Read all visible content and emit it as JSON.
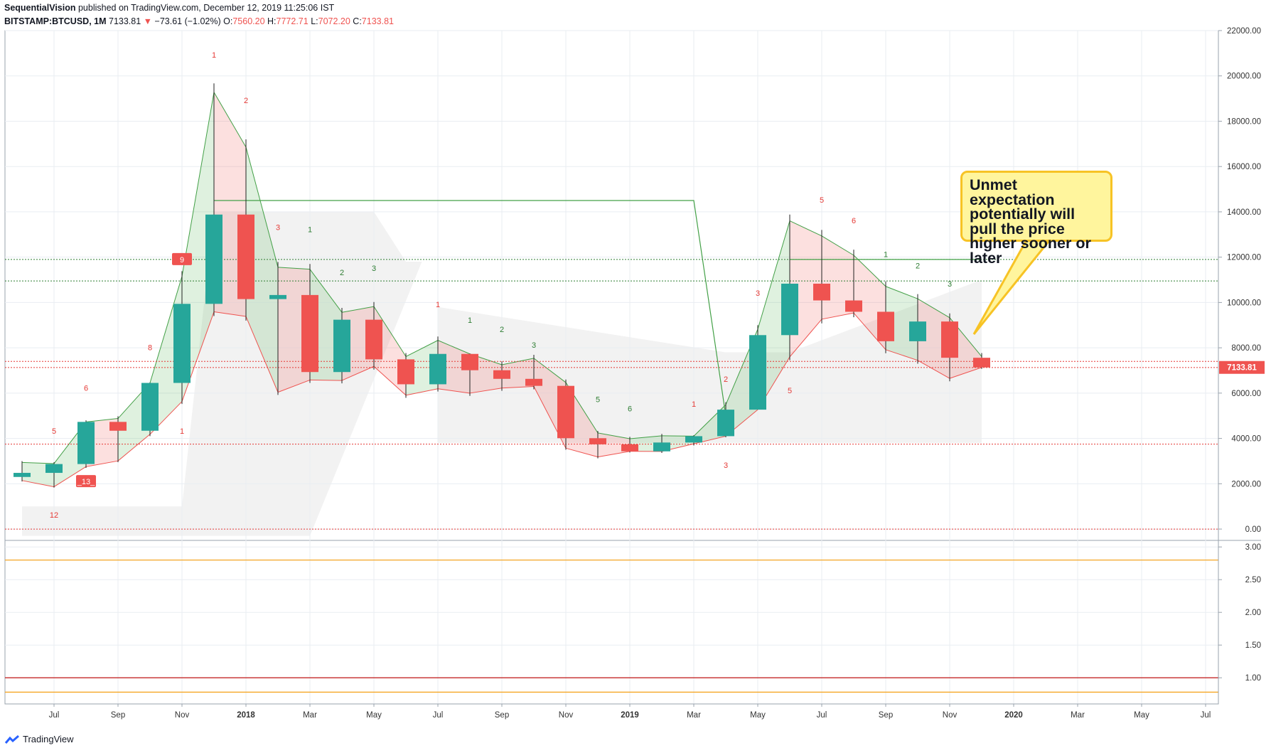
{
  "header": {
    "publisher": "SequentialVision",
    "published_text": "published on TradingView.com, December 12, 2019 11:25:06 IST",
    "symbol": "BITSTAMP:BTCUSD, 1M",
    "last": "7133.81",
    "arrow": "▼",
    "change": "−73.61 (−1.02%)",
    "o_label": "O:",
    "o_value": "7560.20",
    "h_label": "H:",
    "h_value": "7772.71",
    "l_label": "L:",
    "l_value": "7072.20",
    "c_label": "C:",
    "c_value": "7133.81"
  },
  "annotation": {
    "text": "Unmet expectation potentially will pull the price higher sooner or later"
  },
  "footer": {
    "brand": "TradingView"
  },
  "colors": {
    "up": "#26a69a",
    "down": "#ef5350",
    "grid": "#e9edf2",
    "axis": "#555555",
    "green_line": "#43a047",
    "red_line": "#ef5350",
    "orange": "#f5a623"
  },
  "chart_data": [
    {
      "type": "candlestick",
      "ylim": [
        -500,
        22000
      ],
      "y_ticks": [
        0,
        2000,
        4000,
        6000,
        8000,
        10000,
        12000,
        14000,
        16000,
        18000,
        20000,
        22000
      ],
      "y_tick_labels": [
        "0.00",
        "2000.00",
        "4000.00",
        "6000.00",
        "8000.00",
        "10000.00",
        "12000.00",
        "14000.00",
        "16000.00",
        "18000.00",
        "20000.00",
        "22000.00"
      ],
      "x_tick_labels": [
        {
          "i": 1,
          "label": "Jul"
        },
        {
          "i": 3,
          "label": "Sep"
        },
        {
          "i": 5,
          "label": "Nov"
        },
        {
          "i": 7,
          "label": "2018"
        },
        {
          "i": 9,
          "label": "Mar"
        },
        {
          "i": 11,
          "label": "May"
        },
        {
          "i": 13,
          "label": "Jul"
        },
        {
          "i": 15,
          "label": "Sep"
        },
        {
          "i": 17,
          "label": "Nov"
        },
        {
          "i": 19,
          "label": "2019"
        },
        {
          "i": 21,
          "label": "Mar"
        },
        {
          "i": 23,
          "label": "May"
        },
        {
          "i": 25,
          "label": "Jul"
        },
        {
          "i": 27,
          "label": "Sep"
        },
        {
          "i": 29,
          "label": "Nov"
        },
        {
          "i": 31,
          "label": "2020"
        },
        {
          "i": 33,
          "label": "Mar"
        },
        {
          "i": 35,
          "label": "May"
        },
        {
          "i": 37,
          "label": "Jul"
        }
      ],
      "candles": [
        {
          "date": "2017-06",
          "o": 2300,
          "h": 3000,
          "l": 2100,
          "c": 2480
        },
        {
          "date": "2017-07",
          "o": 2480,
          "h": 2950,
          "l": 1830,
          "c": 2870
        },
        {
          "date": "2017-08",
          "o": 2870,
          "h": 4800,
          "l": 2700,
          "c": 4730
        },
        {
          "date": "2017-09",
          "o": 4730,
          "h": 4980,
          "l": 2950,
          "c": 4340
        },
        {
          "date": "2017-10",
          "o": 4340,
          "h": 6470,
          "l": 4100,
          "c": 6450
        },
        {
          "date": "2017-11",
          "o": 6450,
          "h": 11380,
          "l": 5520,
          "c": 9940
        },
        {
          "date": "2017-12",
          "o": 9940,
          "h": 19670,
          "l": 9400,
          "c": 13880
        },
        {
          "date": "2018-01",
          "o": 13880,
          "h": 17200,
          "l": 9200,
          "c": 10150
        },
        {
          "date": "2018-02",
          "o": 10150,
          "h": 11790,
          "l": 5920,
          "c": 10330
        },
        {
          "date": "2018-03",
          "o": 10330,
          "h": 11700,
          "l": 6450,
          "c": 6930
        },
        {
          "date": "2018-04",
          "o": 6930,
          "h": 9760,
          "l": 6430,
          "c": 9240
        },
        {
          "date": "2018-05",
          "o": 9240,
          "h": 10020,
          "l": 7040,
          "c": 7490
        },
        {
          "date": "2018-06",
          "o": 7490,
          "h": 7770,
          "l": 5790,
          "c": 6390
        },
        {
          "date": "2018-07",
          "o": 6390,
          "h": 8500,
          "l": 6070,
          "c": 7730
        },
        {
          "date": "2018-08",
          "o": 7730,
          "h": 7750,
          "l": 5880,
          "c": 7010
        },
        {
          "date": "2018-09",
          "o": 7010,
          "h": 7400,
          "l": 6100,
          "c": 6630
        },
        {
          "date": "2018-10",
          "o": 6630,
          "h": 7690,
          "l": 6170,
          "c": 6320
        },
        {
          "date": "2018-11",
          "o": 6320,
          "h": 6600,
          "l": 3500,
          "c": 4010
        },
        {
          "date": "2018-12",
          "o": 4010,
          "h": 4330,
          "l": 3120,
          "c": 3740
        },
        {
          "date": "2019-01",
          "o": 3740,
          "h": 4070,
          "l": 3380,
          "c": 3430
        },
        {
          "date": "2019-02",
          "o": 3430,
          "h": 4200,
          "l": 3360,
          "c": 3820
        },
        {
          "date": "2019-03",
          "o": 3820,
          "h": 4140,
          "l": 3690,
          "c": 4100
        },
        {
          "date": "2019-04",
          "o": 4100,
          "h": 5600,
          "l": 4050,
          "c": 5270
        },
        {
          "date": "2019-05",
          "o": 5270,
          "h": 9000,
          "l": 5350,
          "c": 8560
        },
        {
          "date": "2019-06",
          "o": 8560,
          "h": 13880,
          "l": 7450,
          "c": 10830
        },
        {
          "date": "2019-07",
          "o": 10830,
          "h": 13200,
          "l": 9080,
          "c": 10090
        },
        {
          "date": "2019-08",
          "o": 10090,
          "h": 12330,
          "l": 9350,
          "c": 9590
        },
        {
          "date": "2019-09",
          "o": 9590,
          "h": 10930,
          "l": 7760,
          "c": 8290
        },
        {
          "date": "2019-10",
          "o": 8290,
          "h": 10370,
          "l": 7300,
          "c": 9160
        },
        {
          "date": "2019-11",
          "o": 9160,
          "h": 9520,
          "l": 6520,
          "c": 7560
        },
        {
          "date": "2019-12",
          "o": 7560,
          "h": 7770,
          "l": 7070,
          "c": 7133.81
        }
      ],
      "last_price_label": "7133.81",
      "setup_labels": [
        {
          "i": 1,
          "text": "5",
          "color": "red",
          "y": 4200
        },
        {
          "i": 2,
          "text": "6",
          "color": "red",
          "y": 6100
        },
        {
          "i": 4,
          "text": "8",
          "color": "red",
          "y": 7900
        },
        {
          "i": 5,
          "text": "1",
          "color": "red",
          "y": 4200
        },
        {
          "i": 6,
          "text": "1",
          "color": "red",
          "y": 20800
        },
        {
          "i": 7,
          "text": "2",
          "color": "red",
          "y": 18800
        },
        {
          "i": 8,
          "text": "3",
          "color": "red",
          "y": 13200
        },
        {
          "i": 9,
          "text": "1",
          "color": "green",
          "y": 13100
        },
        {
          "i": 10,
          "text": "2",
          "color": "green",
          "y": 11200
        },
        {
          "i": 11,
          "text": "3",
          "color": "green",
          "y": 11400
        },
        {
          "i": 13,
          "text": "1",
          "color": "red",
          "y": 9800
        },
        {
          "i": 14,
          "text": "1",
          "color": "green",
          "y": 9100
        },
        {
          "i": 15,
          "text": "2",
          "color": "green",
          "y": 8700
        },
        {
          "i": 16,
          "text": "3",
          "color": "green",
          "y": 8000
        },
        {
          "i": 18,
          "text": "5",
          "color": "green",
          "y": 5600
        },
        {
          "i": 19,
          "text": "6",
          "color": "green",
          "y": 5200
        },
        {
          "i": 21,
          "text": "1",
          "color": "red",
          "y": 5400
        },
        {
          "i": 22,
          "text": "2",
          "color": "red",
          "y": 6500
        },
        {
          "i": 22,
          "text": "3",
          "color": "red",
          "y": 2700
        },
        {
          "i": 23,
          "text": "3",
          "color": "red",
          "y": 10300
        },
        {
          "i": 24,
          "text": "5",
          "color": "red",
          "y": 6000
        },
        {
          "i": 25,
          "text": "5",
          "color": "red",
          "y": 14400
        },
        {
          "i": 26,
          "text": "6",
          "color": "red",
          "y": 13500
        },
        {
          "i": 27,
          "text": "1",
          "color": "green",
          "y": 12000
        },
        {
          "i": 28,
          "text": "2",
          "color": "green",
          "y": 11500
        },
        {
          "i": 29,
          "text": "3",
          "color": "green",
          "y": 10700
        },
        {
          "i": 1,
          "text": "12",
          "color": "red",
          "y": 500
        }
      ],
      "badges": [
        {
          "i": 5,
          "text": "9",
          "y": 11900,
          "color": "#ef5350"
        },
        {
          "i": 2,
          "text": "_13_",
          "y": 2100,
          "color": "#ef5350"
        }
      ],
      "h_lines": [
        {
          "y": 11900,
          "style": "dotted",
          "color": "green"
        },
        {
          "y": 10950,
          "style": "dotted",
          "color": "green"
        },
        {
          "y": 7400,
          "style": "dotted",
          "color": "red"
        },
        {
          "y": 7130,
          "style": "dotted",
          "color": "red"
        },
        {
          "y": 3750,
          "style": "dotted",
          "color": "red"
        },
        {
          "y": 0,
          "style": "dotted",
          "color": "red"
        }
      ],
      "tdst_line": [
        {
          "i": 6,
          "y": 14500
        },
        {
          "i": 21,
          "y": 14500
        },
        {
          "i": 22,
          "y": 5000
        }
      ],
      "tdst_line2": [
        {
          "i": 24,
          "y": 11900
        },
        {
          "i": 30,
          "y": 11900
        }
      ]
    },
    {
      "type": "line",
      "ylim": [
        0.6,
        3.1
      ],
      "y_ticks": [
        1.0,
        1.5,
        2.0,
        2.5,
        3.0
      ],
      "y_tick_labels": [
        "1.00",
        "1.50",
        "2.00",
        "2.50",
        "3.00"
      ],
      "lines": [
        {
          "y": 2.8,
          "color": "orange"
        },
        {
          "y": 1.0,
          "color": "red"
        },
        {
          "y": 0.78,
          "color": "orange"
        }
      ]
    }
  ]
}
